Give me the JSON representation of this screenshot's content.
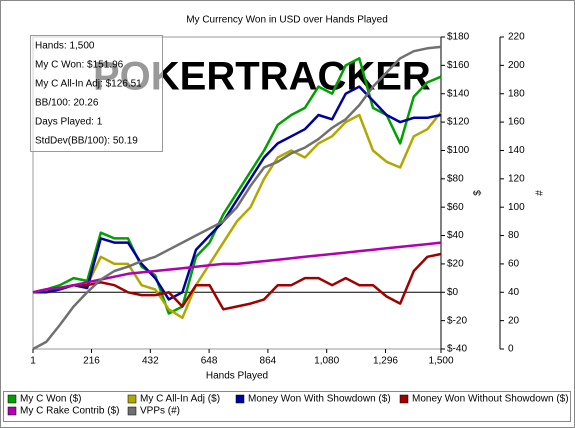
{
  "chart_data": {
    "type": "line",
    "title": "My Currency Won in USD over Hands Played",
    "xlabel": "Hands Played",
    "ylabel": "$",
    "y2label": "#",
    "watermark": "POKERTRACKER",
    "info_box": [
      "Hands: 1,500",
      "My C Won: $151.96",
      "My C All-In Adj: $126.51",
      "BB/100: 20.26",
      "Days Played: 1",
      "StdDev(BB/100): 50.19"
    ],
    "x": [
      1,
      50,
      100,
      150,
      200,
      250,
      300,
      350,
      400,
      450,
      500,
      550,
      600,
      650,
      700,
      750,
      800,
      850,
      900,
      950,
      1000,
      1050,
      1100,
      1150,
      1200,
      1250,
      1300,
      1350,
      1400,
      1450,
      1500
    ],
    "xlim": [
      1,
      1500
    ],
    "xticks": [
      1,
      216,
      432,
      648,
      864,
      {
        "value": 1080,
        "label": "1,080"
      },
      {
        "value": 1296,
        "label": "1,296"
      },
      {
        "value": 1500,
        "label": "1,500"
      }
    ],
    "ylim": [
      -40,
      180
    ],
    "yticks": [
      {
        "value": -40,
        "label": "$-40"
      },
      {
        "value": -20,
        "label": "$-20"
      },
      {
        "value": 0,
        "label": "$0"
      },
      {
        "value": 20,
        "label": "$20"
      },
      {
        "value": 40,
        "label": "$40"
      },
      {
        "value": 60,
        "label": "$60"
      },
      {
        "value": 80,
        "label": "$80"
      },
      {
        "value": 100,
        "label": "$100"
      },
      {
        "value": 120,
        "label": "$120"
      },
      {
        "value": 140,
        "label": "$140"
      },
      {
        "value": 160,
        "label": "$160"
      },
      {
        "value": 180,
        "label": "$180"
      }
    ],
    "y2lim": [
      0,
      220
    ],
    "y2ticks": [
      0,
      20,
      40,
      60,
      80,
      100,
      120,
      140,
      160,
      180,
      200,
      220
    ],
    "series": [
      {
        "name": "My C Won ($)",
        "color": "#00a000",
        "values": [
          0,
          2,
          5,
          10,
          8,
          42,
          38,
          38,
          18,
          12,
          -15,
          -10,
          25,
          35,
          55,
          70,
          85,
          100,
          118,
          125,
          130,
          145,
          140,
          160,
          165,
          130,
          125,
          105,
          138,
          148,
          152
        ]
      },
      {
        "name": "My C All-In Adj ($)",
        "color": "#b0a800",
        "values": [
          0,
          1,
          3,
          5,
          5,
          25,
          20,
          20,
          5,
          2,
          -12,
          -18,
          5,
          20,
          35,
          50,
          60,
          80,
          95,
          100,
          95,
          105,
          110,
          120,
          125,
          100,
          92,
          88,
          110,
          115,
          127
        ]
      },
      {
        "name": "Money Won With Showdown ($)",
        "color": "#0000a0",
        "values": [
          0,
          0,
          2,
          5,
          3,
          38,
          35,
          35,
          20,
          10,
          -5,
          0,
          30,
          40,
          50,
          65,
          80,
          95,
          105,
          110,
          115,
          125,
          122,
          140,
          145,
          135,
          125,
          120,
          123,
          123,
          125
        ]
      },
      {
        "name": "Money Won Without Showdown ($)",
        "color": "#a00000",
        "values": [
          0,
          2,
          3,
          5,
          5,
          7,
          5,
          0,
          -2,
          -2,
          0,
          -10,
          5,
          5,
          -12,
          -10,
          -8,
          -5,
          5,
          5,
          10,
          10,
          5,
          10,
          5,
          5,
          -3,
          -8,
          15,
          25,
          27
        ]
      },
      {
        "name": "My C Rake Contrib ($)",
        "color": "#b000b0",
        "values": [
          0,
          2,
          3,
          5,
          7,
          9,
          11,
          13,
          14,
          15,
          16,
          17,
          18,
          19,
          20,
          20,
          21,
          22,
          23,
          24,
          25,
          26,
          27,
          28,
          29,
          30,
          31,
          32,
          33,
          34,
          35
        ]
      },
      {
        "name": "VPPs (#)",
        "color": "#707070",
        "axis": "y2",
        "values": [
          0,
          5,
          17,
          30,
          40,
          49,
          55,
          58,
          62,
          65,
          70,
          75,
          80,
          85,
          90,
          100,
          115,
          128,
          132,
          138,
          142,
          148,
          156,
          162,
          172,
          185,
          195,
          205,
          210,
          212,
          213
        ]
      }
    ]
  }
}
